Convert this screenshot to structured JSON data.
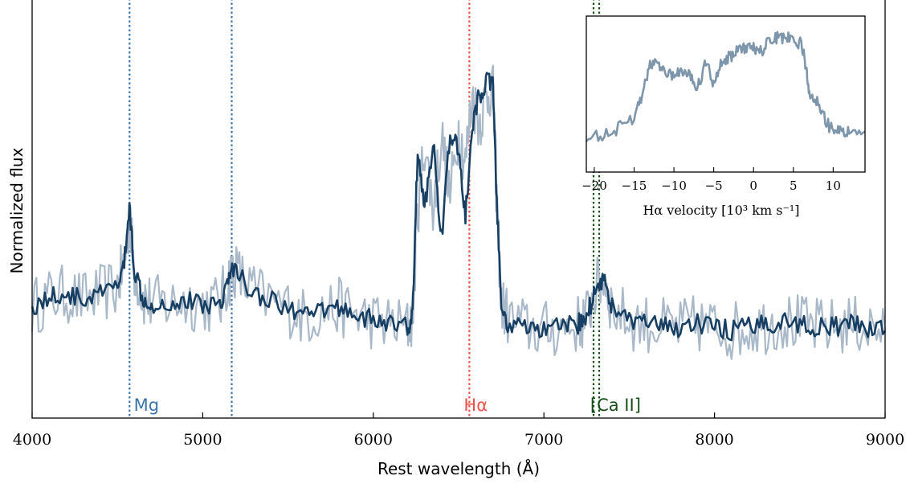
{
  "chart_data": [
    {
      "type": "line",
      "title": "",
      "xlabel": "Rest wavelength (Å)",
      "ylabel": "Normalized flux",
      "xlim": [
        4000,
        9000
      ],
      "ylim": [
        0,
        1.25
      ],
      "x_tick_labels": [
        "4000",
        "5000",
        "6000",
        "7000",
        "8000",
        "9000"
      ],
      "y_ticks_shown": false,
      "grid": false,
      "legend": "none",
      "colors": {
        "raw": "#a9b9c9",
        "smoothed": "#173f63",
        "mg": "#3a76ac",
        "halpha": "#f0524a",
        "ca": "#184f18"
      },
      "series": [
        {
          "role": "raw-spectrum",
          "x": [
            4000,
            4100,
            4200,
            4300,
            4400,
            4500,
            4540,
            4570,
            4600,
            4650,
            4700,
            4800,
            4900,
            5000,
            5100,
            5150,
            5180,
            5250,
            5350,
            5500,
            5600,
            5700,
            5800,
            5900,
            6000,
            6100,
            6200,
            6230,
            6260,
            6300,
            6350,
            6400,
            6450,
            6500,
            6540,
            6580,
            6620,
            6660,
            6700,
            6720,
            6750,
            6800,
            6900,
            7000,
            7100,
            7200,
            7250,
            7300,
            7350,
            7400,
            7500,
            7600,
            7700,
            7800,
            7900,
            8000,
            8100,
            8200,
            8300,
            8400,
            8500,
            8600,
            8700,
            8800,
            8900,
            9000
          ],
          "y": [
            0.33,
            0.36,
            0.37,
            0.35,
            0.37,
            0.39,
            0.46,
            0.59,
            0.44,
            0.36,
            0.34,
            0.34,
            0.35,
            0.34,
            0.34,
            0.41,
            0.45,
            0.4,
            0.36,
            0.33,
            0.3,
            0.32,
            0.33,
            0.31,
            0.29,
            0.28,
            0.27,
            0.3,
            0.62,
            0.82,
            0.62,
            0.84,
            0.66,
            0.86,
            0.76,
            0.96,
            0.88,
            0.95,
            1.0,
            0.7,
            0.34,
            0.29,
            0.27,
            0.26,
            0.27,
            0.28,
            0.3,
            0.38,
            0.42,
            0.33,
            0.29,
            0.28,
            0.27,
            0.27,
            0.28,
            0.27,
            0.26,
            0.27,
            0.28,
            0.29,
            0.28,
            0.27,
            0.27,
            0.28,
            0.27,
            0.26
          ]
        },
        {
          "role": "smoothed-spectrum",
          "x": [
            4000,
            4100,
            4200,
            4300,
            4400,
            4500,
            4540,
            4570,
            4600,
            4650,
            4700,
            4800,
            4900,
            5000,
            5100,
            5150,
            5180,
            5250,
            5350,
            5500,
            5600,
            5700,
            5800,
            5900,
            6000,
            6100,
            6200,
            6230,
            6260,
            6300,
            6350,
            6400,
            6450,
            6500,
            6540,
            6580,
            6620,
            6660,
            6700,
            6720,
            6750,
            6800,
            6900,
            7000,
            7100,
            7200,
            7250,
            7300,
            7350,
            7400,
            7500,
            7600,
            7700,
            7800,
            7900,
            8000,
            8100,
            8200,
            8300,
            8400,
            8500,
            8600,
            8700,
            8800,
            8900,
            9000
          ],
          "y": [
            0.33,
            0.36,
            0.37,
            0.35,
            0.37,
            0.39,
            0.46,
            0.63,
            0.44,
            0.36,
            0.34,
            0.34,
            0.35,
            0.34,
            0.34,
            0.41,
            0.45,
            0.4,
            0.36,
            0.33,
            0.3,
            0.32,
            0.33,
            0.31,
            0.29,
            0.28,
            0.27,
            0.3,
            0.8,
            0.62,
            0.82,
            0.54,
            0.84,
            0.8,
            0.6,
            0.86,
            0.96,
            1.0,
            1.0,
            0.7,
            0.32,
            0.27,
            0.27,
            0.26,
            0.27,
            0.28,
            0.3,
            0.38,
            0.42,
            0.33,
            0.29,
            0.28,
            0.27,
            0.27,
            0.28,
            0.27,
            0.26,
            0.27,
            0.28,
            0.29,
            0.28,
            0.27,
            0.27,
            0.28,
            0.27,
            0.26
          ]
        }
      ],
      "vertical_lines": [
        {
          "x": 4571,
          "color_key": "mg"
        },
        {
          "x": 5170,
          "color_key": "mg"
        },
        {
          "x": 6563,
          "color_key": "halpha"
        },
        {
          "x": 7291,
          "color_key": "ca"
        },
        {
          "x": 7324,
          "color_key": "ca"
        }
      ],
      "annotations": [
        {
          "text": "Mg",
          "x": 4670,
          "color_key": "mg"
        },
        {
          "text": "Hα",
          "x": 6600,
          "color_key": "halpha"
        },
        {
          "text": "[Ca II]",
          "x": 7420,
          "color_key": "ca"
        }
      ]
    },
    {
      "type": "line",
      "title": "",
      "xlabel": "Hα velocity [10³ km s⁻¹]",
      "ylabel": "",
      "xlim": [
        -21,
        14
      ],
      "x_tick_labels": [
        "−20",
        "−15",
        "−10",
        "−5",
        "0",
        "5",
        "10"
      ],
      "x_ticks": [
        -20,
        -15,
        -10,
        -5,
        0,
        5,
        10
      ],
      "legend": "none",
      "colors": {
        "line": "#7e96ab"
      },
      "series": [
        {
          "role": "halpha-profile",
          "x": [
            -21,
            -19,
            -17,
            -15,
            -14,
            -13,
            -12,
            -11,
            -10,
            -9,
            -8,
            -7,
            -6,
            -5,
            -4,
            -3,
            -2,
            -1,
            0,
            1,
            2,
            3,
            4,
            5,
            6,
            6.5,
            7,
            8,
            9,
            10,
            11,
            12,
            14
          ],
          "y": [
            0.22,
            0.24,
            0.28,
            0.34,
            0.5,
            0.68,
            0.7,
            0.64,
            0.62,
            0.66,
            0.64,
            0.54,
            0.71,
            0.56,
            0.71,
            0.74,
            0.77,
            0.8,
            0.79,
            0.78,
            0.84,
            0.86,
            0.86,
            0.85,
            0.82,
            0.7,
            0.5,
            0.46,
            0.33,
            0.26,
            0.27,
            0.25,
            0.26
          ]
        }
      ]
    }
  ]
}
